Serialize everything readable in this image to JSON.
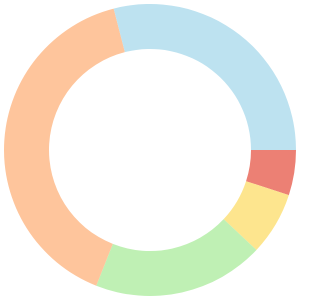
{
  "chart_data": {
    "type": "donut",
    "values": [
      5,
      7,
      19,
      40,
      29
    ],
    "colors": [
      "#ec8074",
      "#fde58e",
      "#bff0b4",
      "#fec59c",
      "#bde2f0"
    ]
  }
}
